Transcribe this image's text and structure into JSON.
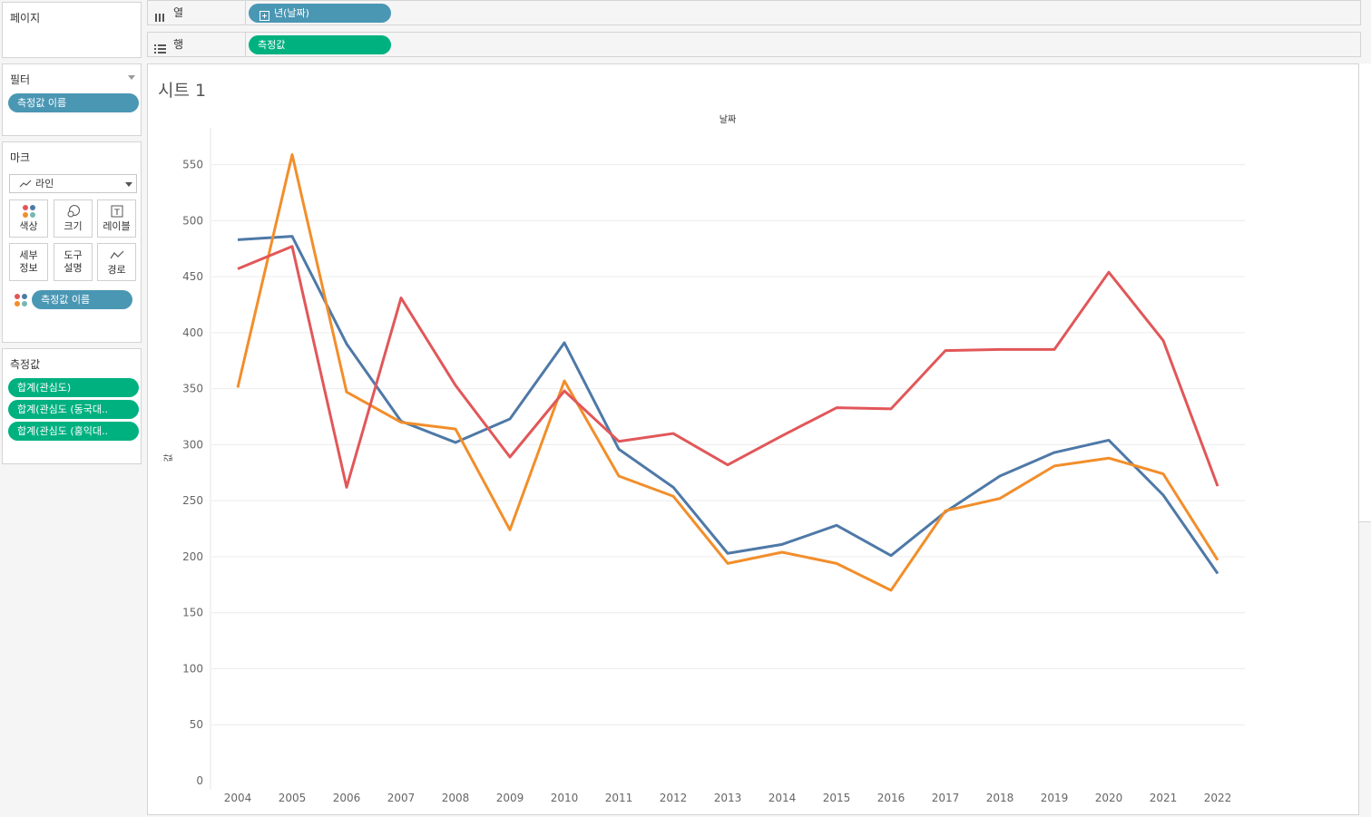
{
  "pages_card": {
    "title": "페이지"
  },
  "filters_card": {
    "title": "필터",
    "pill": "측정값 이름"
  },
  "marks_card": {
    "title": "마크",
    "mark_type": "라인",
    "buttons": {
      "color": "색상",
      "size": "크기",
      "label": "레이블",
      "detail": "세부\n정보",
      "detail_line1": "세부",
      "detail_line2": "정보",
      "tooltip_line1": "도구",
      "tooltip_line2": "설명",
      "path": "경로"
    },
    "color_pill": "측정값 이름"
  },
  "measures_card": {
    "title": "측정값",
    "pills": [
      "합계(관심도)",
      "합계(관심도 (동국대..",
      "합계(관심도 (홍익대.."
    ]
  },
  "columns_shelf": {
    "label": "열",
    "pill": "년(날짜)"
  },
  "rows_shelf": {
    "label": "행",
    "pill": "측정값"
  },
  "sheet": {
    "title": "시트 1"
  },
  "colors": {
    "blue_pill": "#4a97b4",
    "green_pill": "#00b180",
    "series_blue": "#4e79a7",
    "series_orange": "#f28e2b",
    "series_red": "#e15759"
  },
  "chart_data": {
    "type": "line",
    "title": "날짜",
    "xlabel": "날짜",
    "ylabel": "값",
    "categories": [
      "2004",
      "2005",
      "2006",
      "2007",
      "2008",
      "2009",
      "2010",
      "2011",
      "2012",
      "2013",
      "2014",
      "2015",
      "2016",
      "2017",
      "2018",
      "2019",
      "2020",
      "2021",
      "2022"
    ],
    "ylim": [
      0,
      580
    ],
    "yticks": [
      0,
      50,
      100,
      150,
      200,
      250,
      300,
      350,
      400,
      450,
      500,
      550
    ],
    "grid": true,
    "series": [
      {
        "color": "#4e79a7",
        "values": [
          483,
          486,
          390,
          321,
          302,
          323,
          391,
          296,
          262,
          203,
          211,
          228,
          201,
          240,
          272,
          293,
          304,
          255,
          185
        ]
      },
      {
        "color": "#f28e2b",
        "values": [
          351,
          559,
          347,
          320,
          314,
          224,
          357,
          272,
          254,
          194,
          204,
          194,
          170,
          241,
          252,
          281,
          288,
          274,
          197
        ]
      },
      {
        "color": "#e15759",
        "values": [
          457,
          477,
          262,
          431,
          353,
          289,
          348,
          303,
          310,
          282,
          308,
          333,
          332,
          384,
          385,
          385,
          454,
          393,
          263
        ]
      }
    ]
  }
}
